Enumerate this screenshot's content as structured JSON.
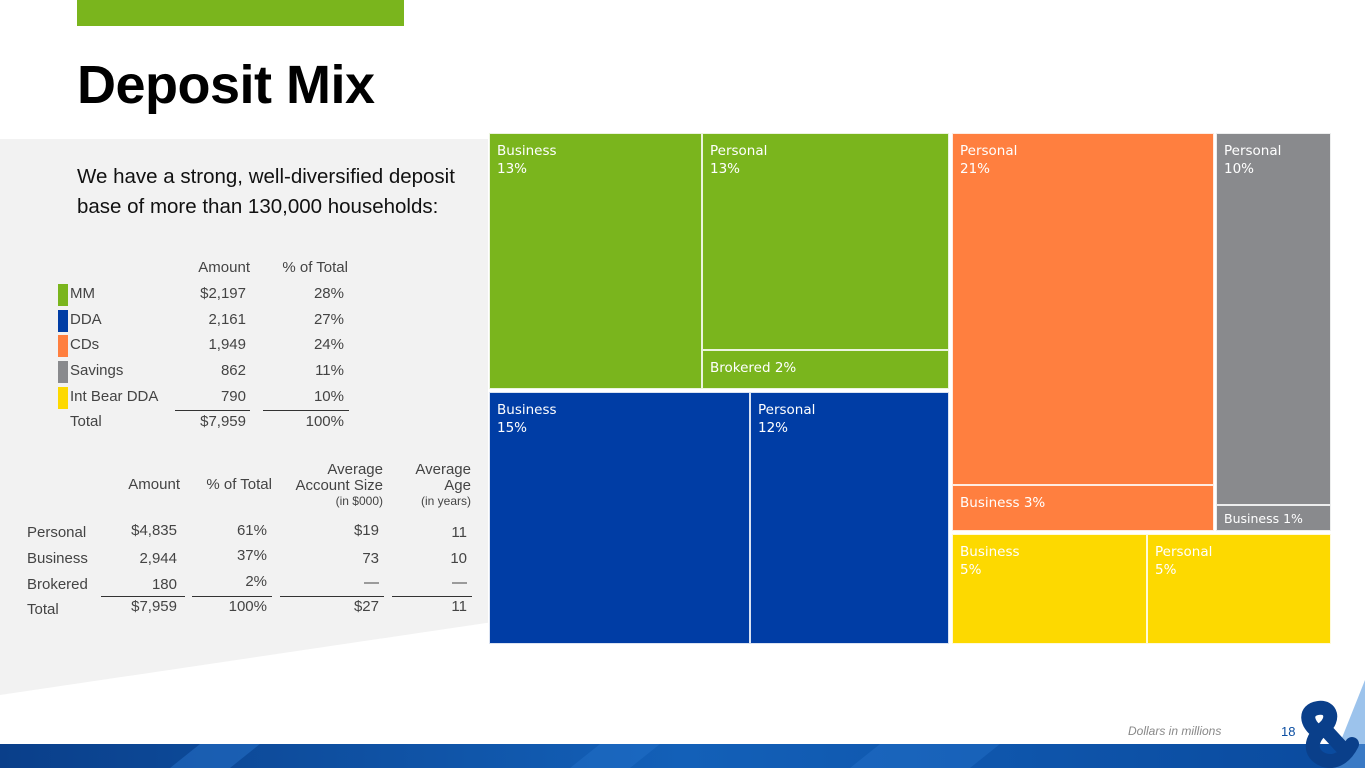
{
  "page": {
    "title": "Deposit Mix",
    "intro": "We have a strong, well-diversified deposit base of  more than 130,000 households:",
    "footnote": "Dollars in millions",
    "page_number": "18",
    "accent_color": "#7ab51d"
  },
  "product_table": {
    "headers": {
      "amount": "Amount",
      "pct": "% of Total"
    },
    "rows": [
      {
        "label": "MM",
        "amount": "$2,197",
        "pct": "28%",
        "color": "#7ab51d"
      },
      {
        "label": "DDA",
        "amount": "2,161",
        "pct": "27%",
        "color": "#003da5"
      },
      {
        "label": "CDs",
        "amount": "1,949",
        "pct": "24%",
        "color": "#ff7f3f"
      },
      {
        "label": "Savings",
        "amount": "862",
        "pct": "11%",
        "color": "#898a8d"
      },
      {
        "label": "Int Bear DDA",
        "amount": "790",
        "pct": "10%",
        "color": "#fdd900"
      }
    ],
    "total": {
      "label": "Total",
      "amount": "$7,959",
      "pct": "100%"
    }
  },
  "segment_table": {
    "headers": {
      "amount": "Amount",
      "pct": "% of Total",
      "avg_size_1": "Average",
      "avg_size_2": "Account Size",
      "avg_size_sub": "(in $000)",
      "avg_age_1": "Average",
      "avg_age_2": "Age",
      "avg_age_sub": "(in years)"
    },
    "rows": [
      {
        "label": "Personal",
        "amount": "$4,835",
        "pct": "61%",
        "avg_size": "$19",
        "avg_age": "11"
      },
      {
        "label": "Business",
        "amount": "2,944",
        "pct": "37%",
        "avg_size": "73",
        "avg_age": "10"
      },
      {
        "label": "Brokered",
        "amount": "180",
        "pct": "2%",
        "avg_size": "—",
        "avg_age": "—"
      }
    ],
    "total": {
      "label": "Total",
      "amount": "$7,959",
      "pct": "100%",
      "avg_size": "$27",
      "avg_age": "11"
    }
  },
  "chart_data": {
    "type": "treemap",
    "title": "Deposit Mix",
    "groups": [
      {
        "product": "MM",
        "color": "#7ab51d",
        "tiles": [
          {
            "segment": "Business",
            "pct": 13,
            "label": "Business\n13%"
          },
          {
            "segment": "Personal",
            "pct": 13,
            "label": "Personal\n13%"
          },
          {
            "segment": "Brokered",
            "pct": 2,
            "label": "Brokered 2%"
          }
        ]
      },
      {
        "product": "DDA",
        "color": "#003da5",
        "tiles": [
          {
            "segment": "Business",
            "pct": 15,
            "label": "Business\n15%"
          },
          {
            "segment": "Personal",
            "pct": 12,
            "label": "Personal\n12%"
          }
        ]
      },
      {
        "product": "CDs",
        "color": "#ff7f3f",
        "tiles": [
          {
            "segment": "Personal",
            "pct": 21,
            "label": "Personal\n21%"
          },
          {
            "segment": "Business",
            "pct": 3,
            "label": "Business 3%"
          }
        ]
      },
      {
        "product": "Savings",
        "color": "#898a8d",
        "tiles": [
          {
            "segment": "Personal",
            "pct": 10,
            "label": "Personal\n10%"
          },
          {
            "segment": "Business",
            "pct": 1,
            "label": "Business 1%"
          }
        ]
      },
      {
        "product": "Int Bear DDA",
        "color": "#fdd900",
        "tiles": [
          {
            "segment": "Business",
            "pct": 5,
            "label": "Business\n5%"
          },
          {
            "segment": "Personal",
            "pct": 5,
            "label": "Personal\n5%"
          }
        ]
      }
    ]
  }
}
